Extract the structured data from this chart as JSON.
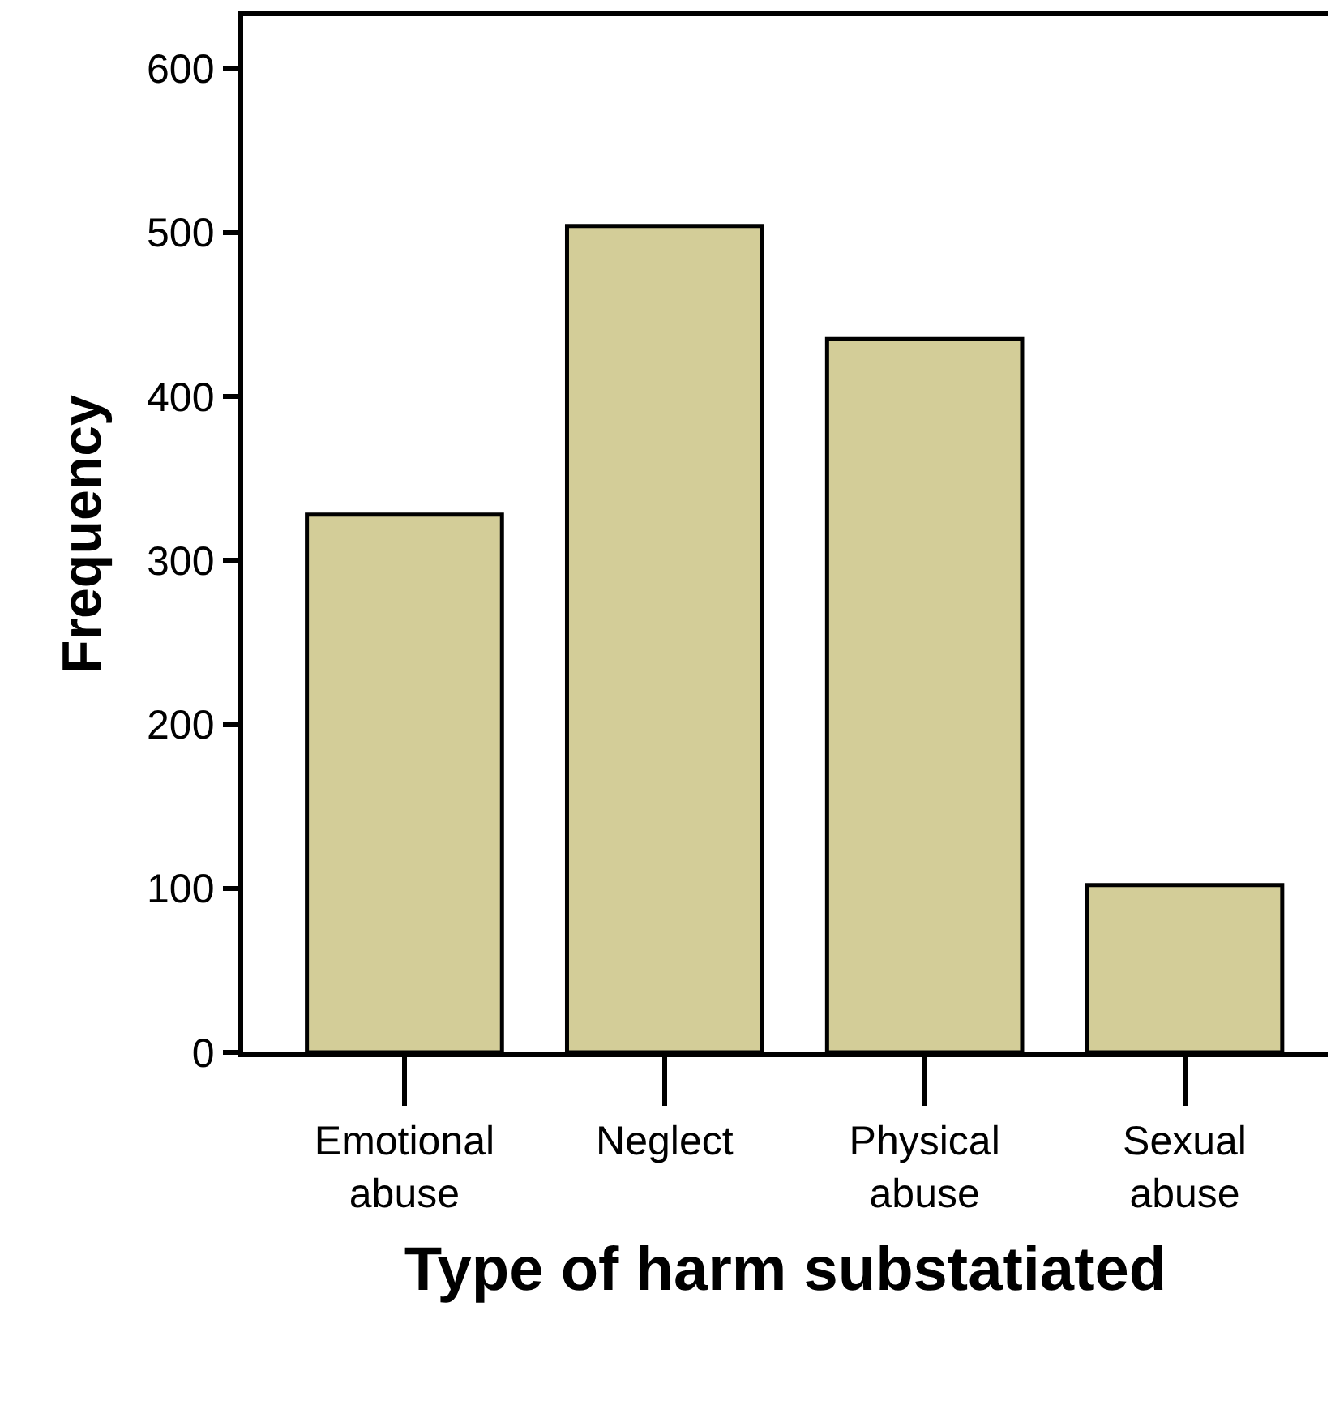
{
  "chart_data": {
    "type": "bar",
    "xlabel": "Type of harm substatiated",
    "ylabel": "Frequency",
    "categories": [
      "Emotional abuse",
      "Neglect",
      "Physical abuse",
      "Sexual abuse"
    ],
    "values": [
      328,
      504,
      435,
      102
    ],
    "color": "#d3cd98",
    "ylim": [
      0,
      632
    ],
    "yticks": [
      0,
      100,
      200,
      300,
      400,
      500,
      600
    ]
  }
}
